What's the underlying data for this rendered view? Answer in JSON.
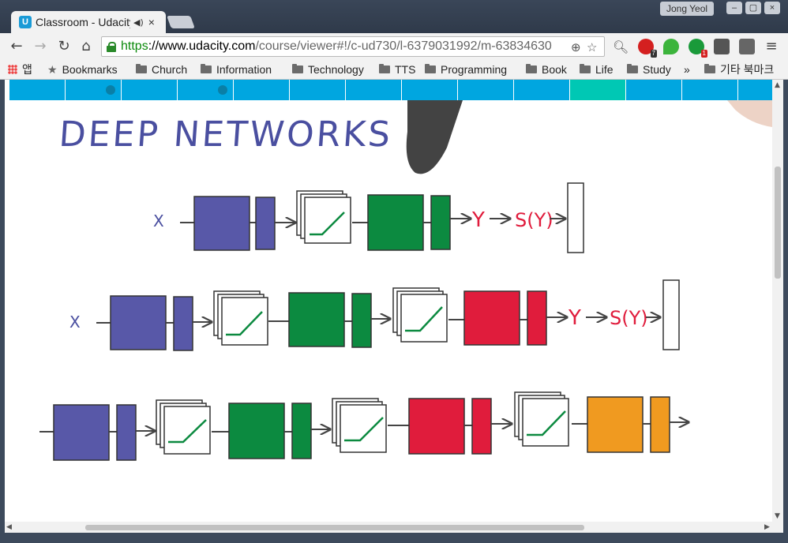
{
  "window": {
    "tab_title": "Classroom - Udacity",
    "tab_icon_letter": "U",
    "tab_audio_icon": "speaker-icon",
    "tab_close": "×",
    "user_name": "Jong Yeol"
  },
  "toolbar": {
    "back": "←",
    "forward": "→",
    "reload": "↻",
    "home": "⌂",
    "url_scheme": "https",
    "url_sep": "://",
    "url_host": "www.udacity.com",
    "url_path": "/course/viewer#!/c-ud730/l-6379031992/m-63834630",
    "zoom_icon": "zoom-icon",
    "star_icon": "star-icon",
    "menu_icon": "menu-icon",
    "ext_badge_1": "7",
    "ext_badge_2": "1"
  },
  "bookmarks": {
    "apps": "앱",
    "items": [
      "Bookmarks",
      "Church",
      "Information",
      "Technology",
      "TTS",
      "Programming",
      "Book",
      "Life",
      "Study"
    ],
    "overflow": "»",
    "other": "기타 북마크"
  },
  "lecture": {
    "title": "DEEP NETWORKS",
    "input_label": "X",
    "logits_label": "Y",
    "softmax_label": "S(Y)",
    "colors": {
      "blue": "#5858a8",
      "green": "#0c8a40",
      "red": "#e01c3c",
      "orange": "#f09a20",
      "handwriting": "#4a4fa0",
      "accent": "#00a6e0",
      "accent_active": "#00c8b4"
    }
  }
}
